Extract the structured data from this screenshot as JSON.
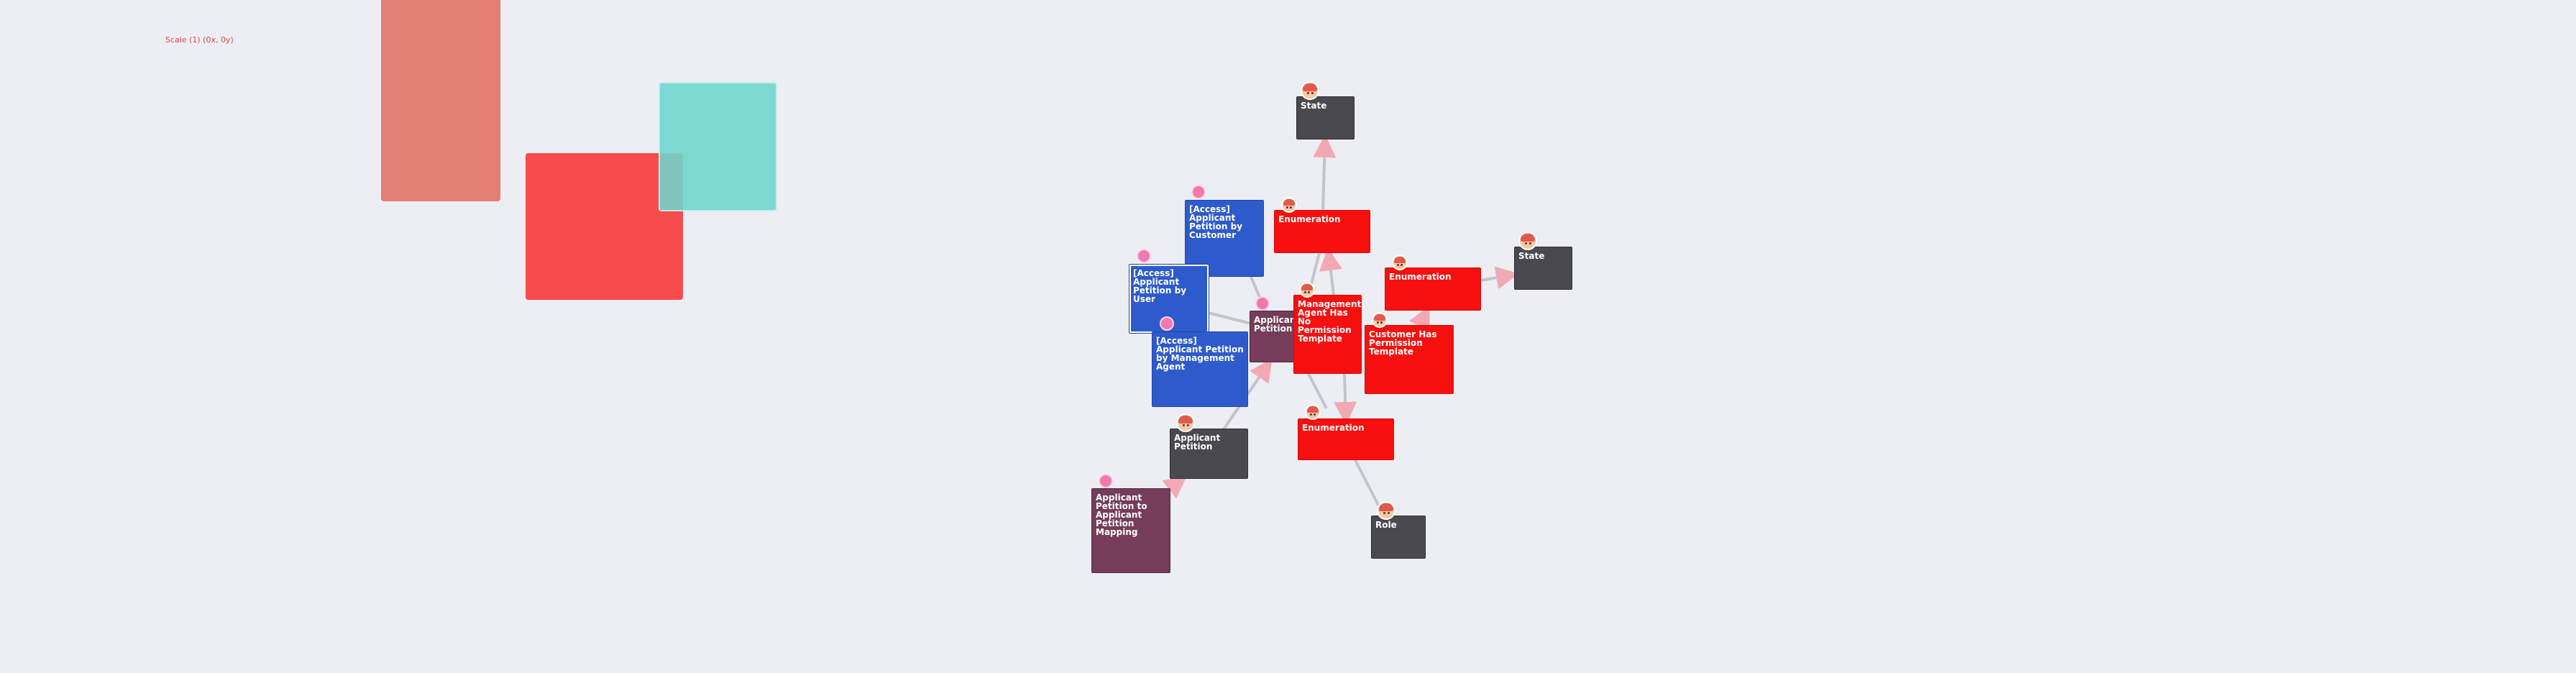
{
  "canvas": {
    "scale_label": "Scale (1) (0x, 0y)"
  },
  "nodes": {
    "state_top": "State",
    "state_right": "State",
    "enumeration_top": "Enumeration",
    "enumeration_right": "Enumeration",
    "enumeration_bottom": "Enumeration",
    "access_customer": "[Access] Applicant Petition by Customer",
    "access_user": "[Access] Applicant Petition by User",
    "access_management": "[Access] Applicant Petition by Management Agent",
    "applicant_petition_center": "Applicant Petition",
    "management_agent_template": "Management Agent Has No Permission Template",
    "customer_template": "Customer Has Permission Template",
    "applicant_petition_dark": "Applicant Petition",
    "role": "Role",
    "mapping": "Applicant Petition to Applicant Petition Mapping"
  },
  "colors": {
    "background": "#eceef3",
    "dark_node": "#4a494f",
    "enum_node": "#f80f0f",
    "access_node": "#2e5bcc",
    "entity_node": "#753d5a",
    "edge": "#c3c4cc",
    "arrow": "#f2a9b4"
  },
  "icons": {
    "avatar": "user-avatar-icon",
    "pin": "pin-icon"
  }
}
